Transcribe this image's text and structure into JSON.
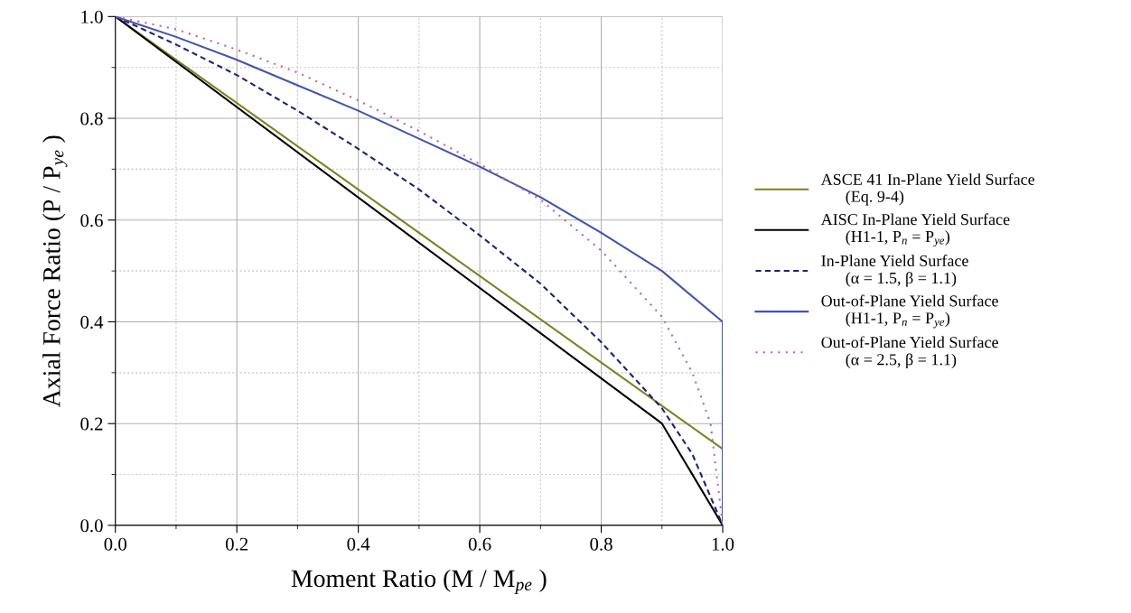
{
  "chart_data": {
    "type": "line",
    "xlabel": "Moment Ratio (M / M$_{pe}$ )",
    "ylabel": "Axial Force Ratio (P / P$_{ye}$ )",
    "xlim": [
      0,
      1
    ],
    "ylim": [
      0,
      1
    ],
    "xticks": [
      {
        "value": 0,
        "label": "0.0"
      },
      0.2,
      0.4,
      0.6,
      0.8,
      {
        "value": 1,
        "label": "1.0"
      }
    ],
    "yticks": [
      {
        "value": 0,
        "label": "0.0"
      },
      0.2,
      0.4,
      0.6,
      0.8,
      {
        "value": 1,
        "label": "1.0"
      }
    ],
    "grid": true,
    "legend": "right",
    "series": [
      {
        "name": "ASCE 41 In-Plane Yield Surface\n      (Eq. 9-4)",
        "color": "#7f7f20",
        "line_style": "solid",
        "x": [
          0,
          1
        ],
        "values": [
          1,
          0.15
        ]
      },
      {
        "name": "AISC In-Plane Yield Surface\n      (H1-1, P$_{n}$ = P$_{ye}$)",
        "color": "#000000",
        "line_style": "solid",
        "x": [
          0,
          0.9,
          1
        ],
        "values": [
          1,
          0.2,
          0
        ]
      },
      {
        "name": "In-Plane Yield Surface\n      (α = 1.5, β = 1.1)",
        "color": "#1f1f7a",
        "line_style": "dashed",
        "x": [
          0,
          0.1,
          0.2,
          0.3,
          0.4,
          0.5,
          0.6,
          0.7,
          0.8,
          0.9,
          0.95,
          1.0
        ],
        "values": [
          1,
          0.945,
          0.885,
          0.815,
          0.74,
          0.66,
          0.57,
          0.475,
          0.36,
          0.23,
          0.14,
          0
        ]
      },
      {
        "name": "Out-of-Plane Yield Surface\n      (H1-1, P$_{n}$ = P$_{ye}$)",
        "color": "#4055b0",
        "line_style": "solid",
        "x": [
          0,
          0.1,
          0.2,
          0.3,
          0.4,
          0.5,
          0.6,
          0.7,
          0.8,
          0.9,
          1.0,
          1.0
        ],
        "values": [
          1,
          0.96,
          0.915,
          0.865,
          0.815,
          0.76,
          0.705,
          0.645,
          0.575,
          0.5,
          0.4,
          0
        ]
      },
      {
        "name": "Out-of-Plane Yield Surface\n      (α = 2.5, β = 1.1)",
        "color": "#c060b0",
        "line_style": "dotted",
        "x": [
          0,
          0.1,
          0.2,
          0.3,
          0.4,
          0.5,
          0.6,
          0.7,
          0.8,
          0.9,
          0.95,
          0.98,
          1.0
        ],
        "values": [
          1,
          0.975,
          0.935,
          0.89,
          0.835,
          0.775,
          0.71,
          0.64,
          0.54,
          0.41,
          0.3,
          0.2,
          0
        ]
      }
    ]
  }
}
